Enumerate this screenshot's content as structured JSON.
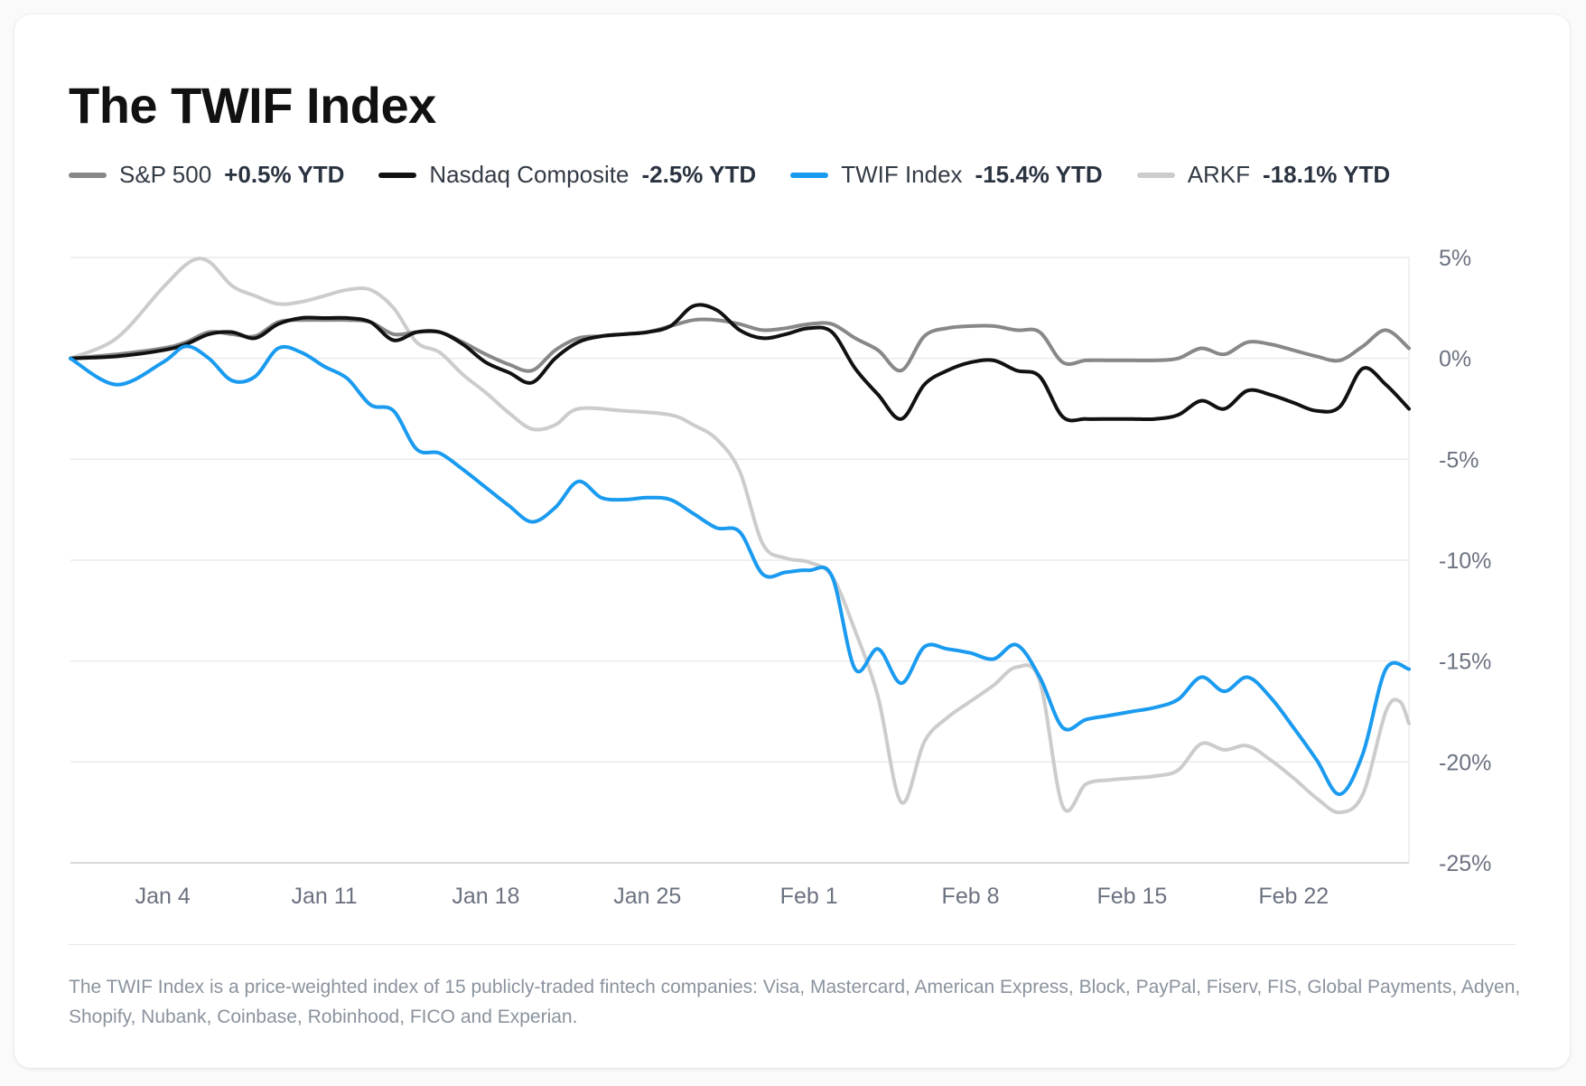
{
  "title": "The TWIF Index",
  "legend": [
    {
      "name": "S&P 500",
      "ytd": "+0.5% YTD",
      "color": "#888888"
    },
    {
      "name": "Nasdaq Composite",
      "ytd": "-2.5% YTD",
      "color": "#111111"
    },
    {
      "name": "TWIF Index",
      "ytd": "-15.4% YTD",
      "color": "#1a9bf0"
    },
    {
      "name": "ARKF",
      "ytd": "-18.1% YTD",
      "color": "#cccccc"
    }
  ],
  "footnote": "The TWIF Index is a price-weighted index of 15 publicly-traded fintech companies: Visa, Mastercard, American Express, Block, PayPal, Fiserv, FIS, Global Payments, Adyen, Shopify, Nubank, Coinbase, Robinhood, FICO and Experian.",
  "chart_data": {
    "type": "line",
    "title": "The TWIF Index",
    "xlabel": "",
    "ylabel": "",
    "ylim": [
      -25,
      5
    ],
    "xlim": [
      0,
      58
    ],
    "grid": true,
    "y_ticks": [
      {
        "value": 5,
        "label": "5%"
      },
      {
        "value": 0,
        "label": "0%"
      },
      {
        "value": -5,
        "label": "-5%"
      },
      {
        "value": -10,
        "label": "-10%"
      },
      {
        "value": -15,
        "label": "-15%"
      },
      {
        "value": -20,
        "label": "-20%"
      },
      {
        "value": -25,
        "label": "-25%"
      }
    ],
    "x_ticks": [
      {
        "value": 4,
        "label": "Jan 4"
      },
      {
        "value": 11,
        "label": "Jan 11"
      },
      {
        "value": 18,
        "label": "Jan 18"
      },
      {
        "value": 25,
        "label": "Jan 25"
      },
      {
        "value": 32,
        "label": "Feb 1"
      },
      {
        "value": 39,
        "label": "Feb 8"
      },
      {
        "value": 46,
        "label": "Feb 15"
      },
      {
        "value": 53,
        "label": "Feb 22"
      }
    ],
    "series": [
      {
        "name": "ARKF",
        "color": "#cccccc",
        "points": [
          [
            0,
            0
          ],
          [
            2,
            1
          ],
          [
            4,
            3.5
          ],
          [
            5.2,
            4.8
          ],
          [
            6,
            4.8
          ],
          [
            7,
            3.6
          ],
          [
            8,
            3.1
          ],
          [
            9,
            2.7
          ],
          [
            10,
            2.8
          ],
          [
            11,
            3.1
          ],
          [
            12,
            3.4
          ],
          [
            13,
            3.4
          ],
          [
            14,
            2.5
          ],
          [
            15,
            0.8
          ],
          [
            16,
            0.3
          ],
          [
            17,
            -0.8
          ],
          [
            18,
            -1.7
          ],
          [
            19,
            -2.7
          ],
          [
            20,
            -3.5
          ],
          [
            21,
            -3.3
          ],
          [
            22,
            -2.5
          ],
          [
            24,
            -2.6
          ],
          [
            26,
            -2.8
          ],
          [
            27,
            -3.3
          ],
          [
            28,
            -4
          ],
          [
            29,
            -5.6
          ],
          [
            30,
            -9.2
          ],
          [
            31,
            -9.9
          ],
          [
            32,
            -10.1
          ],
          [
            33,
            -10.8
          ],
          [
            34,
            -13.5
          ],
          [
            35,
            -16.8
          ],
          [
            36,
            -22
          ],
          [
            37,
            -19
          ],
          [
            38,
            -17.8
          ],
          [
            39,
            -17
          ],
          [
            40,
            -16.2
          ],
          [
            41,
            -15.3
          ],
          [
            42,
            -16
          ],
          [
            43,
            -22.2
          ],
          [
            44,
            -21.1
          ],
          [
            45,
            -20.9
          ],
          [
            46,
            -20.8
          ],
          [
            47,
            -20.7
          ],
          [
            48,
            -20.4
          ],
          [
            49,
            -19.1
          ],
          [
            50,
            -19.4
          ],
          [
            51,
            -19.2
          ],
          [
            52,
            -19.9
          ],
          [
            53,
            -20.8
          ],
          [
            54,
            -21.8
          ],
          [
            55,
            -22.5
          ],
          [
            56,
            -21.6
          ],
          [
            57,
            -17.5
          ],
          [
            57.6,
            -17
          ],
          [
            58,
            -18.1
          ]
        ]
      },
      {
        "name": "S&P 500",
        "color": "#888888",
        "points": [
          [
            0,
            0
          ],
          [
            2,
            0.2
          ],
          [
            4,
            0.5
          ],
          [
            5,
            0.8
          ],
          [
            6,
            1.3
          ],
          [
            7,
            1.2
          ],
          [
            8,
            1.1
          ],
          [
            9,
            1.8
          ],
          [
            10,
            1.9
          ],
          [
            11,
            1.9
          ],
          [
            12,
            1.9
          ],
          [
            13,
            1.8
          ],
          [
            14,
            1.2
          ],
          [
            15,
            1.3
          ],
          [
            16,
            1.3
          ],
          [
            17,
            0.8
          ],
          [
            18,
            0.2
          ],
          [
            19,
            -0.3
          ],
          [
            20,
            -0.6
          ],
          [
            21,
            0.4
          ],
          [
            22,
            1
          ],
          [
            23,
            1.1
          ],
          [
            24,
            1.2
          ],
          [
            25,
            1.3
          ],
          [
            26,
            1.6
          ],
          [
            27,
            1.9
          ],
          [
            28,
            1.9
          ],
          [
            29,
            1.7
          ],
          [
            30,
            1.4
          ],
          [
            31,
            1.5
          ],
          [
            32,
            1.7
          ],
          [
            33,
            1.7
          ],
          [
            34,
            1
          ],
          [
            35,
            0.4
          ],
          [
            36,
            -0.6
          ],
          [
            37,
            1.1
          ],
          [
            38,
            1.5
          ],
          [
            39,
            1.6
          ],
          [
            40,
            1.6
          ],
          [
            41,
            1.4
          ],
          [
            42,
            1.3
          ],
          [
            43,
            -0.2
          ],
          [
            44,
            -0.1
          ],
          [
            45,
            -0.1
          ],
          [
            46,
            -0.1
          ],
          [
            47,
            -0.1
          ],
          [
            48,
            0
          ],
          [
            49,
            0.5
          ],
          [
            50,
            0.2
          ],
          [
            51,
            0.8
          ],
          [
            52,
            0.7
          ],
          [
            53,
            0.4
          ],
          [
            54,
            0.1
          ],
          [
            55,
            -0.1
          ],
          [
            56,
            0.6
          ],
          [
            57,
            1.4
          ],
          [
            58,
            0.5
          ]
        ]
      },
      {
        "name": "Nasdaq Composite",
        "color": "#111111",
        "points": [
          [
            0,
            0
          ],
          [
            2,
            0.1
          ],
          [
            4,
            0.4
          ],
          [
            5,
            0.7
          ],
          [
            6,
            1.2
          ],
          [
            7,
            1.3
          ],
          [
            8,
            1
          ],
          [
            9,
            1.7
          ],
          [
            10,
            2
          ],
          [
            11,
            2
          ],
          [
            12,
            2
          ],
          [
            13,
            1.8
          ],
          [
            14,
            0.9
          ],
          [
            15,
            1.3
          ],
          [
            16,
            1.3
          ],
          [
            17,
            0.7
          ],
          [
            18,
            -0.2
          ],
          [
            19,
            -0.7
          ],
          [
            20,
            -1.2
          ],
          [
            21,
            0
          ],
          [
            22,
            0.8
          ],
          [
            23,
            1.1
          ],
          [
            24,
            1.2
          ],
          [
            25,
            1.3
          ],
          [
            26,
            1.6
          ],
          [
            27,
            2.6
          ],
          [
            28,
            2.4
          ],
          [
            29,
            1.4
          ],
          [
            30,
            1
          ],
          [
            31,
            1.2
          ],
          [
            32,
            1.5
          ],
          [
            33,
            1.3
          ],
          [
            34,
            -0.5
          ],
          [
            35,
            -1.8
          ],
          [
            36,
            -3
          ],
          [
            37,
            -1.3
          ],
          [
            38,
            -0.6
          ],
          [
            39,
            -0.2
          ],
          [
            40,
            -0.1
          ],
          [
            41,
            -0.6
          ],
          [
            42,
            -0.9
          ],
          [
            43,
            -2.9
          ],
          [
            44,
            -3
          ],
          [
            45,
            -3
          ],
          [
            46,
            -3
          ],
          [
            47,
            -3
          ],
          [
            48,
            -2.8
          ],
          [
            49,
            -2.1
          ],
          [
            50,
            -2.5
          ],
          [
            51,
            -1.6
          ],
          [
            52,
            -1.8
          ],
          [
            53,
            -2.2
          ],
          [
            54,
            -2.6
          ],
          [
            55,
            -2.4
          ],
          [
            56,
            -0.5
          ],
          [
            57,
            -1.3
          ],
          [
            58,
            -2.5
          ]
        ]
      },
      {
        "name": "TWIF Index",
        "color": "#1a9bf0",
        "points": [
          [
            0,
            0
          ],
          [
            2,
            -1.3
          ],
          [
            4,
            -0.2
          ],
          [
            5,
            0.6
          ],
          [
            6,
            0
          ],
          [
            7,
            -1.1
          ],
          [
            8,
            -0.9
          ],
          [
            9,
            0.5
          ],
          [
            10,
            0.3
          ],
          [
            11,
            -0.4
          ],
          [
            12,
            -1
          ],
          [
            13,
            -2.3
          ],
          [
            14,
            -2.6
          ],
          [
            15,
            -4.5
          ],
          [
            16,
            -4.7
          ],
          [
            17,
            -5.5
          ],
          [
            18,
            -6.4
          ],
          [
            19,
            -7.3
          ],
          [
            20,
            -8.1
          ],
          [
            21,
            -7.4
          ],
          [
            22,
            -6.1
          ],
          [
            23,
            -6.9
          ],
          [
            24,
            -7
          ],
          [
            25,
            -6.9
          ],
          [
            26,
            -7
          ],
          [
            27,
            -7.7
          ],
          [
            28,
            -8.4
          ],
          [
            29,
            -8.6
          ],
          [
            30,
            -10.7
          ],
          [
            31,
            -10.6
          ],
          [
            32,
            -10.5
          ],
          [
            33,
            -10.8
          ],
          [
            34,
            -15.4
          ],
          [
            35,
            -14.4
          ],
          [
            36,
            -16.1
          ],
          [
            37,
            -14.3
          ],
          [
            38,
            -14.4
          ],
          [
            39,
            -14.6
          ],
          [
            40,
            -14.9
          ],
          [
            41,
            -14.2
          ],
          [
            42,
            -15.8
          ],
          [
            43,
            -18.3
          ],
          [
            44,
            -17.9
          ],
          [
            45,
            -17.7
          ],
          [
            46,
            -17.5
          ],
          [
            47,
            -17.3
          ],
          [
            48,
            -16.9
          ],
          [
            49,
            -15.8
          ],
          [
            50,
            -16.5
          ],
          [
            51,
            -15.8
          ],
          [
            52,
            -16.8
          ],
          [
            53,
            -18.3
          ],
          [
            54,
            -19.9
          ],
          [
            55,
            -21.6
          ],
          [
            56,
            -19.6
          ],
          [
            57,
            -15.4
          ],
          [
            58,
            -15.4
          ]
        ]
      }
    ]
  }
}
